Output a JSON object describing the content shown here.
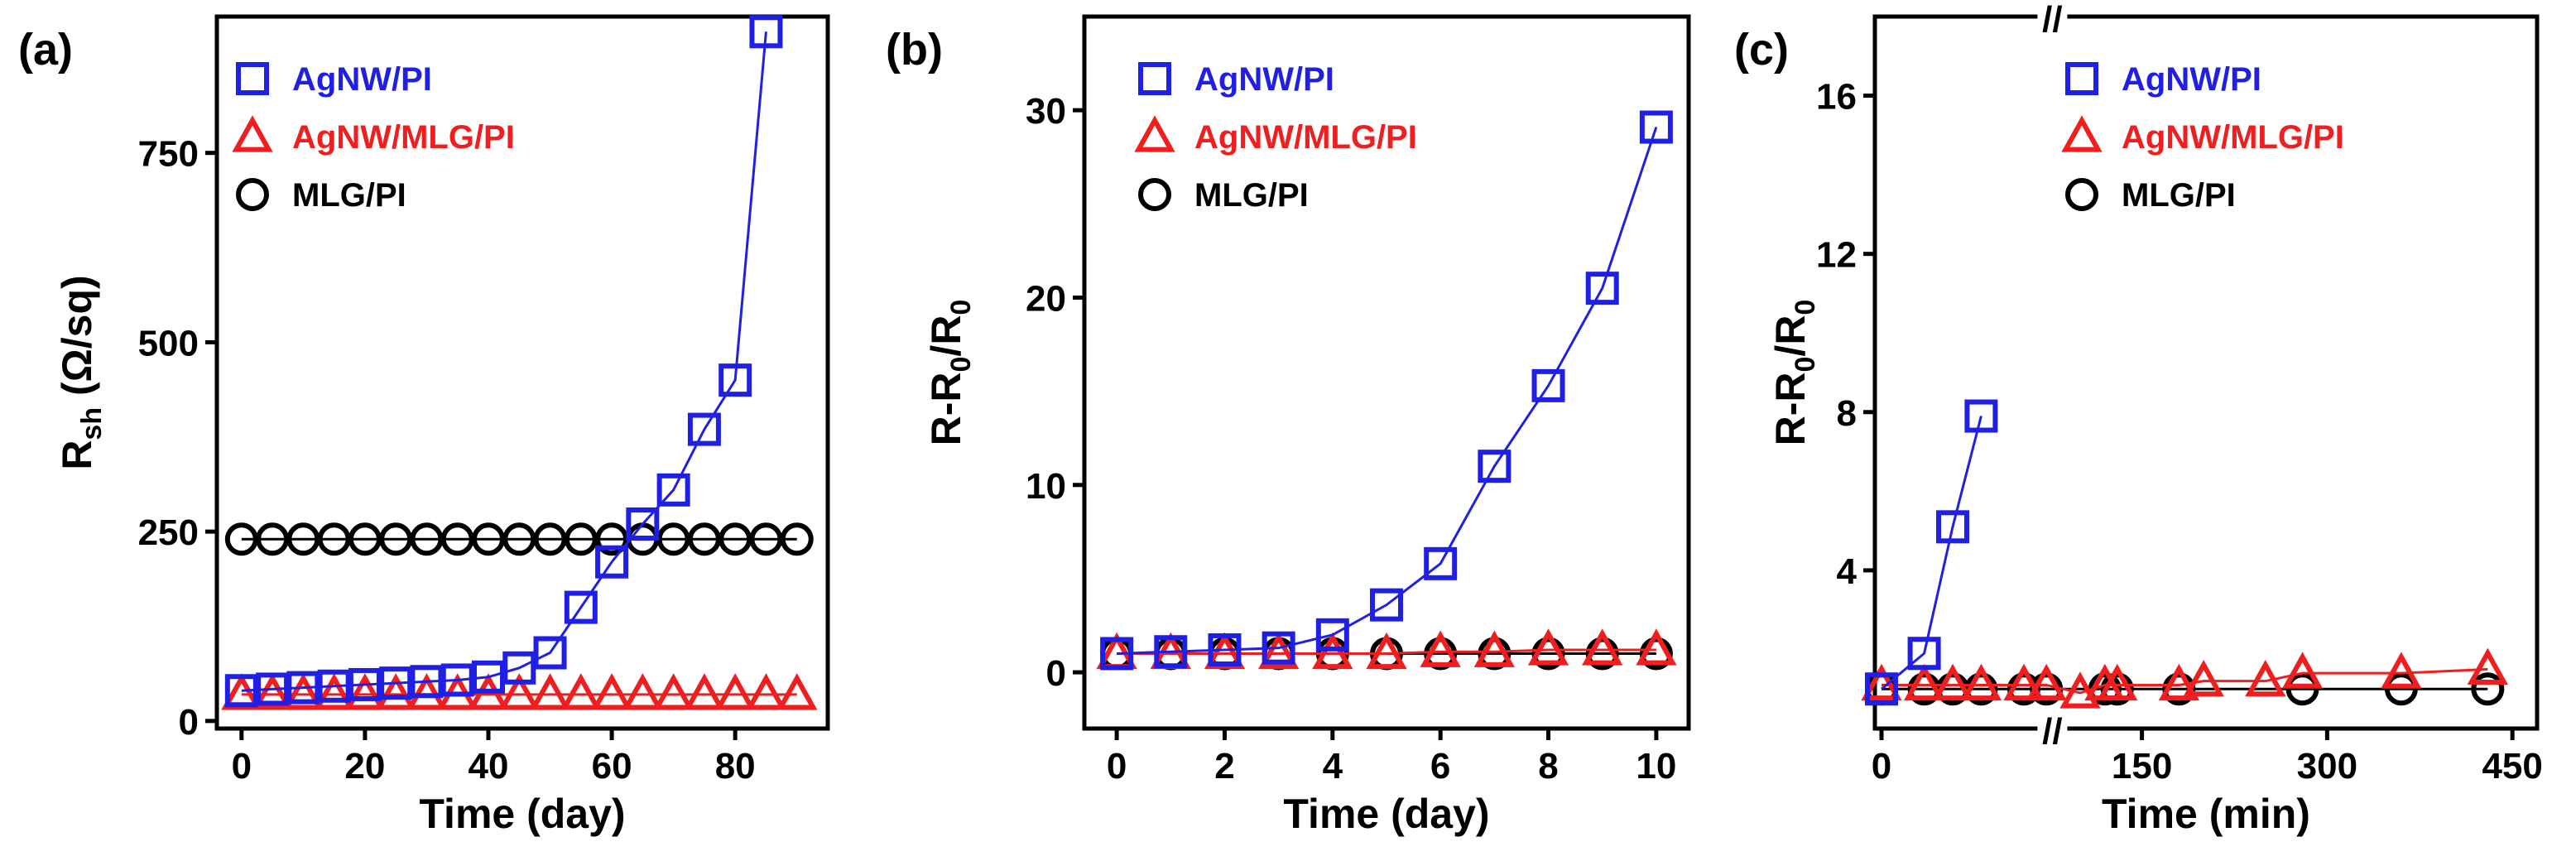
{
  "colors": {
    "AgNW/PI": "#1f1fe6",
    "AgNW/MLG/PI": "#f01e1e",
    "MLG/PI": "#000000"
  },
  "chart_data": [
    {
      "type": "line",
      "panel": "(a)",
      "xlabel": "Time (day)",
      "ylabel": "R",
      "ylabel_sub": "sh",
      "ylabel_suffix": " (Ω/sq)",
      "xlim": [
        -4,
        95
      ],
      "ylim": [
        -10,
        930
      ],
      "xticks": [
        0,
        20,
        40,
        60,
        80
      ],
      "yticks": [
        0,
        250,
        500,
        750
      ],
      "legend_position": "top-left",
      "series": [
        {
          "name": "AgNW/PI",
          "marker": "square",
          "x": [
            0,
            5,
            10,
            15,
            20,
            25,
            30,
            35,
            40,
            45,
            50,
            55,
            60,
            65,
            70,
            75,
            80,
            85
          ],
          "y": [
            40,
            42,
            44,
            46,
            48,
            50,
            52,
            54,
            58,
            70,
            90,
            150,
            210,
            260,
            305,
            385,
            450,
            910
          ]
        },
        {
          "name": "AgNW/MLG/PI",
          "marker": "triangle",
          "x": [
            0,
            5,
            10,
            15,
            20,
            25,
            30,
            35,
            40,
            45,
            50,
            55,
            60,
            65,
            70,
            75,
            80,
            85,
            90
          ],
          "y": [
            35,
            35,
            35,
            35,
            35,
            35,
            35,
            35,
            35,
            35,
            35,
            35,
            35,
            35,
            35,
            35,
            35,
            35,
            35
          ]
        },
        {
          "name": "MLG/PI",
          "marker": "circle",
          "x": [
            0,
            5,
            10,
            15,
            20,
            25,
            30,
            35,
            40,
            45,
            50,
            55,
            60,
            65,
            70,
            75,
            80,
            85,
            90
          ],
          "y": [
            240,
            240,
            240,
            240,
            240,
            240,
            240,
            240,
            240,
            240,
            240,
            240,
            240,
            240,
            240,
            240,
            240,
            240,
            240
          ]
        }
      ]
    },
    {
      "type": "line",
      "panel": "(b)",
      "xlabel": "Time (day)",
      "ylabel": "R-R",
      "ylabel_sub": "0",
      "ylabel_suffix": "/R",
      "ylabel_sub2": "0",
      "xlim": [
        -0.6,
        10.6
      ],
      "ylim": [
        -3,
        35
      ],
      "xticks": [
        0,
        2,
        4,
        6,
        8,
        10
      ],
      "yticks": [
        0,
        10,
        20,
        30
      ],
      "legend_position": "top-left",
      "series": [
        {
          "name": "AgNW/PI",
          "marker": "square",
          "x": [
            0,
            1,
            2,
            3,
            4,
            5,
            6,
            7,
            8,
            9,
            10
          ],
          "y": [
            1.0,
            1.1,
            1.2,
            1.3,
            2.0,
            3.6,
            5.8,
            11.0,
            15.3,
            20.5,
            29.1
          ]
        },
        {
          "name": "AgNW/MLG/PI",
          "marker": "triangle",
          "x": [
            0,
            1,
            2,
            3,
            4,
            5,
            6,
            7,
            8,
            9,
            10
          ],
          "y": [
            1.0,
            1.0,
            1.0,
            1.0,
            1.0,
            1.0,
            1.1,
            1.1,
            1.2,
            1.2,
            1.2
          ]
        },
        {
          "name": "MLG/PI",
          "marker": "circle",
          "x": [
            0,
            1,
            2,
            3,
            4,
            5,
            6,
            7,
            8,
            9,
            10
          ],
          "y": [
            1.0,
            1.0,
            1.0,
            1.0,
            1.0,
            1.0,
            1.0,
            1.0,
            1.0,
            1.0,
            1.0
          ]
        }
      ]
    },
    {
      "type": "line",
      "panel": "(c)",
      "xlabel": "Time (min)",
      "ylabel": "R-R",
      "ylabel_sub": "0",
      "ylabel_suffix": "/R",
      "ylabel_sub2": "0",
      "xlim": [
        -1,
        470
      ],
      "ylim": [
        0,
        18
      ],
      "xticks": [
        0,
        150,
        300,
        450
      ],
      "yticks": [
        4,
        8,
        12,
        16
      ],
      "axis_break_symbol": "//",
      "legend_position": "top-left",
      "series": [
        {
          "name": "AgNW/PI",
          "marker": "square",
          "x": [
            0,
            15,
            25,
            35
          ],
          "y": [
            1.0,
            1.9,
            5.1,
            7.9
          ]
        },
        {
          "name": "AgNW/MLG/PI",
          "marker": "triangle",
          "x": [
            0,
            15,
            25,
            35,
            50,
            70,
            100,
            120,
            130,
            180,
            200,
            250,
            280,
            360,
            430
          ],
          "y": [
            1.1,
            1.1,
            1.1,
            1.1,
            1.1,
            1.1,
            0.9,
            1.1,
            1.1,
            1.1,
            1.2,
            1.2,
            1.4,
            1.4,
            1.5
          ]
        },
        {
          "name": "MLG/PI",
          "marker": "circle",
          "x": [
            0,
            15,
            25,
            35,
            50,
            70,
            120,
            130,
            180,
            280,
            360,
            430
          ],
          "y": [
            1.0,
            1.0,
            1.0,
            1.0,
            1.0,
            1.0,
            1.0,
            1.0,
            1.0,
            1.0,
            1.0,
            1.0
          ]
        }
      ]
    }
  ]
}
